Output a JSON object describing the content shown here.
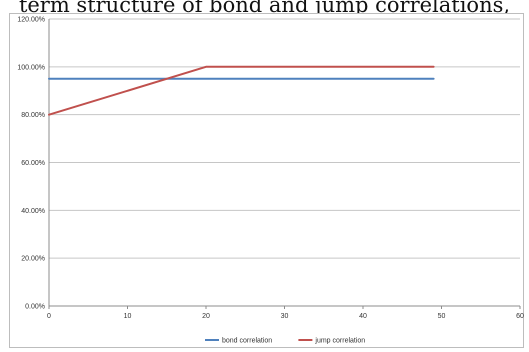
{
  "caption_text": "term structure of bond and jump correlations,",
  "chart_data": {
    "type": "line",
    "x": [
      0,
      10,
      20,
      30,
      40,
      49
    ],
    "series": [
      {
        "name": "bond correlation",
        "color": "#4f81bd",
        "x": [
          0,
          49
        ],
        "values": [
          0.95,
          0.95
        ]
      },
      {
        "name": "jump correlation",
        "color": "#c0504d",
        "x": [
          0,
          19,
          20,
          49
        ],
        "values": [
          0.8,
          0.99,
          1.0,
          1.0
        ]
      }
    ],
    "xlim": [
      0,
      60
    ],
    "ylim": [
      0,
      1.2
    ],
    "xticks": [
      "0",
      "10",
      "20",
      "30",
      "40",
      "50",
      "60"
    ],
    "yticks": [
      "0.00%",
      "20.00%",
      "40.00%",
      "60.00%",
      "80.00%",
      "100.00%",
      "120.00%"
    ],
    "grid": true,
    "legend_position": "bottom"
  }
}
